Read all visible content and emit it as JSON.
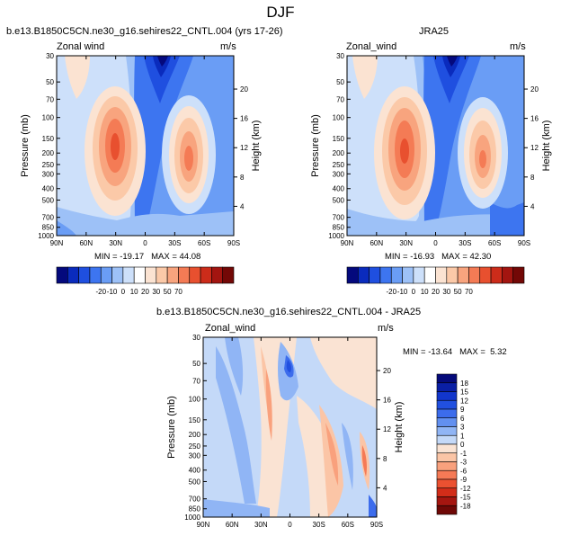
{
  "page_title": "DJF",
  "panels": [
    {
      "title": "b.e13.B1850C5CN.ne30_g16.sehires22_CNTL.004 (yrs 17-26)",
      "left_label": "Zonal wind",
      "right_label": "m/s",
      "minmax": "MIN = -19.17   MAX = 44.08"
    },
    {
      "title": "JRA25",
      "left_label": "Zonal_wind",
      "right_label": "m/s",
      "minmax": "MIN = -16.93   MAX = 42.30"
    },
    {
      "title": "b.e13.B1850C5CN.ne30_g16.sehires22_CNTL.004 - JRA25",
      "left_label": "Zonal_wind",
      "right_label": "m/s",
      "minmax": "MIN = -13.64   MAX =  5.32"
    }
  ],
  "chart_data": [
    {
      "type": "heatmap",
      "title": "b.e13.B1850C5CN.ne30_g16.sehires22_CNTL.004 (yrs 17-26)",
      "variable": "Zonal wind",
      "units": "m/s",
      "ylabel": "Pressure (mb)",
      "y2label": "Height (km)",
      "x_ticks": [
        "90N",
        "60N",
        "30N",
        "0",
        "30S",
        "60S",
        "90S"
      ],
      "y_ticks": [
        "30",
        "50",
        "70",
        "100",
        "150",
        "200",
        "250",
        "300",
        "400",
        "500",
        "700",
        "850",
        "1000"
      ],
      "y2_ticks": [
        "20",
        "16",
        "12",
        "8",
        "4"
      ],
      "min": -19.17,
      "max": 44.08,
      "features": [
        {
          "lat": 30,
          "p": 200,
          "speed": 44
        },
        {
          "lat": -45,
          "p": 250,
          "speed": 36
        },
        {
          "lat": 5,
          "p": 30,
          "speed": -19
        }
      ]
    },
    {
      "type": "heatmap",
      "title": "JRA25",
      "variable": "Zonal_wind",
      "units": "m/s",
      "ylabel": "Pressure (mb)",
      "y2label": "Height (km)",
      "x_ticks": [
        "90N",
        "60N",
        "30N",
        "0",
        "30S",
        "60S",
        "90S"
      ],
      "y_ticks": [
        "30",
        "50",
        "70",
        "100",
        "150",
        "200",
        "250",
        "300",
        "400",
        "500",
        "700",
        "850",
        "1000"
      ],
      "y2_ticks": [
        "20",
        "16",
        "12",
        "8",
        "4"
      ],
      "min": -16.93,
      "max": 42.3,
      "features": [
        {
          "lat": 30,
          "p": 200,
          "speed": 42
        },
        {
          "lat": -40,
          "p": 250,
          "speed": 34
        },
        {
          "lat": 5,
          "p": 30,
          "speed": -17
        }
      ]
    },
    {
      "type": "heatmap",
      "title": "b.e13.B1850C5CN.ne30_g16.sehires22_CNTL.004 - JRA25",
      "variable": "Zonal_wind",
      "units": "m/s",
      "ylabel": "Pressure (mb)",
      "y2label": "Height (km)",
      "x_ticks": [
        "90N",
        "60N",
        "30N",
        "0",
        "30S",
        "60S",
        "90S"
      ],
      "y_ticks": [
        "30",
        "50",
        "70",
        "100",
        "150",
        "200",
        "250",
        "300",
        "400",
        "500",
        "700",
        "850",
        "1000"
      ],
      "y2_ticks": [
        "20",
        "16",
        "12",
        "8",
        "4"
      ],
      "min": -13.64,
      "max": 5.32,
      "features": [
        {
          "lat": 5,
          "p": 50,
          "speed": -13
        },
        {
          "lat": -55,
          "p": 500,
          "speed": 5
        }
      ]
    }
  ],
  "colorbars": [
    {
      "labels": [
        "-20",
        "-10",
        "0",
        "10",
        "20",
        "30",
        "50",
        "70"
      ],
      "colors": [
        "#04097d",
        "#0a2bbd",
        "#1f4fe0",
        "#3d75f0",
        "#6a9df5",
        "#9dc1f7",
        "#cde0fa",
        "#ffffff",
        "#fbe3d2",
        "#fbc9a8",
        "#f8a47e",
        "#f47b55",
        "#e8502f",
        "#cc2c1a",
        "#a31510",
        "#730806"
      ]
    },
    {
      "labels": [
        "-18",
        "-15",
        "-12",
        "-9",
        "-6",
        "-3",
        "-1",
        "0",
        "1",
        "3",
        "6",
        "9",
        "12",
        "15",
        "18"
      ],
      "colors": [
        "#050a7a",
        "#0a1fa5",
        "#1236cc",
        "#2150e0",
        "#3c6cec",
        "#6290f0",
        "#90b5f5",
        "#c4d9f8",
        "#fae3d3",
        "#fbc5a6",
        "#f9a17d",
        "#f57a56",
        "#eb5131",
        "#d22d19",
        "#a51610",
        "#6f0806"
      ]
    }
  ],
  "colors": {
    "strong_negative": "#04097d",
    "negative": "#3d75f0",
    "light_negative": "#cde0fa",
    "light_positive": "#fbe3d2",
    "positive": "#f47b55",
    "strong_positive": "#730806"
  }
}
